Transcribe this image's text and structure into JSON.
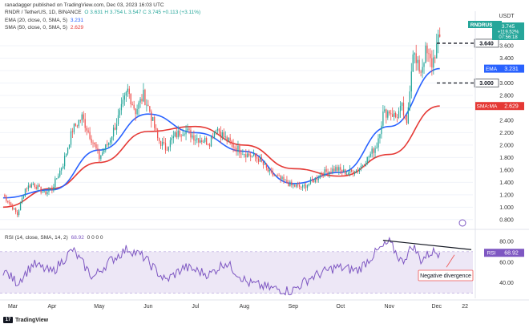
{
  "header": {
    "published": "ranadagger published on TradingView.com, Dec 03, 2023 16:03 UTC",
    "symbol_line": "RNDR / TetherUS, 1D, BINANCE",
    "ohlc": "O 3.631  H 3.754  L 3.547  C 3.745  +0.113 (+3.11%)",
    "ema_label": "EMA (20, close, 0, SMA, 5)",
    "ema_value": "3.231",
    "sma_label": "SMA (50, close, 0, SMA, 5)",
    "sma_value": "2.629",
    "rsi_label": "RSI (14, close, SMA, 14, 2)",
    "rsi_value": "68.92",
    "rsi_extra": "0 0 0 0"
  },
  "colors": {
    "up": "#26a69a",
    "down": "#ef5350",
    "ema": "#2962ff",
    "sma": "#e53935",
    "rsi": "#7e57c2",
    "rsi_band": "#ede7f6",
    "axis_text": "#333333"
  },
  "chart_data": [
    {
      "type": "candlestick",
      "title": "RNDR / TetherUS, 1D, BINANCE",
      "currency": "USDT",
      "price_axis_ticks": [
        "0.800",
        "1.000",
        "1.200",
        "1.400",
        "1.600",
        "1.800",
        "2.000",
        "2.200",
        "2.400",
        "2.600",
        "2.800",
        "3.000",
        "3.200",
        "3.400",
        "3.600"
      ],
      "ylim": [
        0.72,
        3.82
      ],
      "time_axis_labels": [
        "Mar",
        "Apr",
        "May",
        "Jun",
        "Jul",
        "Aug",
        "Sep",
        "Oct",
        "Nov",
        "Dec",
        "22"
      ],
      "ohlc_anchors": [
        {
          "date": "Mar 01",
          "close": 1.2
        },
        {
          "date": "Mar 06",
          "close": 1.03
        },
        {
          "date": "Mar 10",
          "close": 0.88
        },
        {
          "date": "Mar 15",
          "close": 1.3
        },
        {
          "date": "Mar 20",
          "close": 1.38
        },
        {
          "date": "Mar 27",
          "close": 1.22
        },
        {
          "date": "Apr 01",
          "close": 1.3
        },
        {
          "date": "Apr 08",
          "close": 1.7
        },
        {
          "date": "Apr 14",
          "close": 2.25
        },
        {
          "date": "Apr 20",
          "close": 2.45
        },
        {
          "date": "Apr 27",
          "close": 2.05
        },
        {
          "date": "May 01",
          "close": 1.8
        },
        {
          "date": "May 07",
          "close": 2.05
        },
        {
          "date": "May 14",
          "close": 2.5
        },
        {
          "date": "May 19",
          "close": 2.88
        },
        {
          "date": "May 24",
          "close": 2.55
        },
        {
          "date": "May 29",
          "close": 2.8
        },
        {
          "date": "Jun 02",
          "close": 2.55
        },
        {
          "date": "Jun 07",
          "close": 2.1
        },
        {
          "date": "Jun 12",
          "close": 1.95
        },
        {
          "date": "Jun 18",
          "close": 2.15
        },
        {
          "date": "Jun 24",
          "close": 2.25
        },
        {
          "date": "Jul 01",
          "close": 2.12
        },
        {
          "date": "Jul 10",
          "close": 2.05
        },
        {
          "date": "Jul 14",
          "close": 2.3
        },
        {
          "date": "Jul 20",
          "close": 2.1
        },
        {
          "date": "Jul 27",
          "close": 1.95
        },
        {
          "date": "Aug 03",
          "close": 1.85
        },
        {
          "date": "Aug 10",
          "close": 1.78
        },
        {
          "date": "Aug 17",
          "close": 1.55
        },
        {
          "date": "Aug 24",
          "close": 1.45
        },
        {
          "date": "Aug 31",
          "close": 1.35
        },
        {
          "date": "Sep 07",
          "close": 1.32
        },
        {
          "date": "Sep 12",
          "close": 1.4
        },
        {
          "date": "Sep 20",
          "close": 1.55
        },
        {
          "date": "Sep 28",
          "close": 1.62
        },
        {
          "date": "Oct 05",
          "close": 1.55
        },
        {
          "date": "Oct 12",
          "close": 1.6
        },
        {
          "date": "Oct 18",
          "close": 1.78
        },
        {
          "date": "Oct 24",
          "close": 2.0
        },
        {
          "date": "Oct 28",
          "close": 2.5
        },
        {
          "date": "Nov 01",
          "close": 2.55
        },
        {
          "date": "Nov 05",
          "close": 2.45
        },
        {
          "date": "Nov 09",
          "close": 2.6
        },
        {
          "date": "Nov 12",
          "close": 2.3
        },
        {
          "date": "Nov 14",
          "close": 2.95
        },
        {
          "date": "Nov 16",
          "close": 3.55
        },
        {
          "date": "Nov 18",
          "close": 3.3
        },
        {
          "date": "Nov 21",
          "close": 3.2
        },
        {
          "date": "Nov 24",
          "close": 3.5
        },
        {
          "date": "Nov 28",
          "close": 3.3
        },
        {
          "date": "Dec 01",
          "close": 3.58
        },
        {
          "date": "Dec 03",
          "close": 3.745
        }
      ],
      "series": [
        {
          "name": "EMA 20",
          "x": [
            "Mar 01",
            "Apr 01",
            "May 01",
            "Jun 01",
            "Jul 01",
            "Aug 01",
            "Sep 01",
            "Oct 01",
            "Nov 01",
            "Dec 03"
          ],
          "values": [
            1.15,
            1.28,
            1.92,
            2.5,
            2.2,
            1.9,
            1.38,
            1.56,
            2.3,
            3.231
          ]
        },
        {
          "name": "SMA 50",
          "x": [
            "Mar 01",
            "Apr 01",
            "May 01",
            "Jun 01",
            "Jul 01",
            "Aug 01",
            "Sep 01",
            "Oct 01",
            "Nov 01",
            "Dec 03"
          ],
          "values": [
            1.0,
            1.3,
            1.72,
            2.22,
            2.3,
            2.0,
            1.62,
            1.5,
            1.85,
            2.629
          ]
        }
      ],
      "horizontal_levels": [
        {
          "price": 3.64,
          "label": "3.640"
        },
        {
          "price": 3.0,
          "label": "3.000"
        }
      ],
      "price_labels": [
        {
          "tag": "RNDRUSDT",
          "value": "3.745",
          "pct": "+119.52%",
          "time": "07:56:18"
        },
        {
          "tag": "EMA",
          "value": "3.231"
        },
        {
          "tag": "SMA:MA",
          "value": "2.629"
        }
      ]
    },
    {
      "type": "line",
      "title": "RSI (14, close, SMA, 14, 2)",
      "ylim": [
        25,
        90
      ],
      "y_ticks": [
        "40.00",
        "60.00",
        "70.00",
        "80.00"
      ],
      "band": [
        30,
        70
      ],
      "x": [
        "Mar 01",
        "Mar 10",
        "Mar 20",
        "Apr 01",
        "Apr 14",
        "Apr 27",
        "May 07",
        "May 19",
        "May 29",
        "Jun 12",
        "Jun 24",
        "Jul 10",
        "Jul 20",
        "Aug 03",
        "Aug 17",
        "Aug 31",
        "Sep 12",
        "Sep 28",
        "Oct 12",
        "Oct 24",
        "Nov 01",
        "Nov 09",
        "Nov 16",
        "Nov 21",
        "Nov 28",
        "Dec 03"
      ],
      "values": [
        52,
        40,
        58,
        50,
        72,
        45,
        60,
        73,
        65,
        42,
        55,
        48,
        60,
        40,
        35,
        32,
        45,
        55,
        52,
        70,
        79,
        60,
        76,
        62,
        70,
        68.92
      ],
      "current_label": {
        "tag": "RSI",
        "value": "68.92"
      },
      "annotation": "Negative divergence"
    }
  ]
}
